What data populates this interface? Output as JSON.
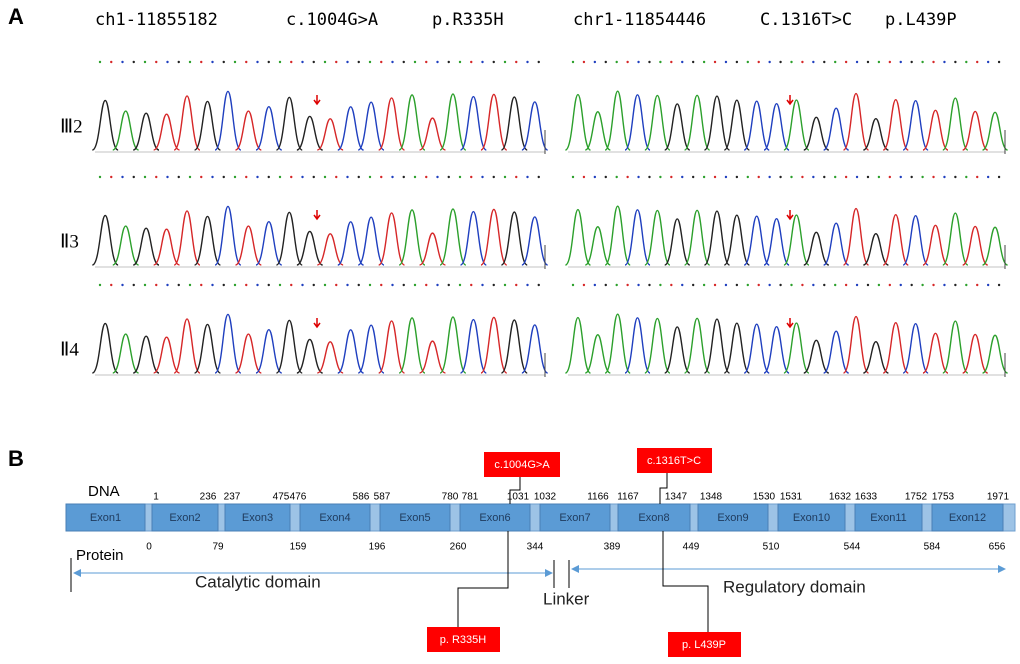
{
  "panel_a": {
    "label": "A",
    "headers": [
      "ch1-11855182",
      "c.1004G>A",
      "p.R335H",
      "chr1-11854446",
      "C.1316T>C",
      "p.L439P"
    ],
    "rows": [
      "Ⅲ2",
      "Ⅱ3",
      "Ⅱ4"
    ]
  },
  "panel_b": {
    "label": "B",
    "dna_label": "DNA",
    "exons": [
      "Exon1",
      "Exon2",
      "Exon3",
      "Exon4",
      "Exon5",
      "Exon6",
      "Exon7",
      "Exon8",
      "Exon9",
      "Exon10",
      "Exon11",
      "Exon12"
    ],
    "dna_positions": [
      "1",
      "236",
      "237",
      "475",
      "476",
      "586",
      "587",
      "780",
      "781",
      "1031",
      "1032",
      "1166",
      "1167",
      "1347",
      "1348",
      "1530",
      "1531",
      "1632",
      "1633",
      "1752",
      "1753",
      "1971"
    ],
    "protein_label": "Protein",
    "protein_positions": [
      "0",
      "79",
      "159",
      "196",
      "260",
      "344",
      "389",
      "449",
      "510",
      "544",
      "584",
      "656"
    ],
    "domains": [
      "Catalytic domain",
      "Linker",
      "Regulatory domain"
    ],
    "dna_mutations": [
      "c.1004G>A",
      "c.1316T>C"
    ],
    "protein_mutations": [
      "p. R335H",
      "p. L439P"
    ]
  }
}
